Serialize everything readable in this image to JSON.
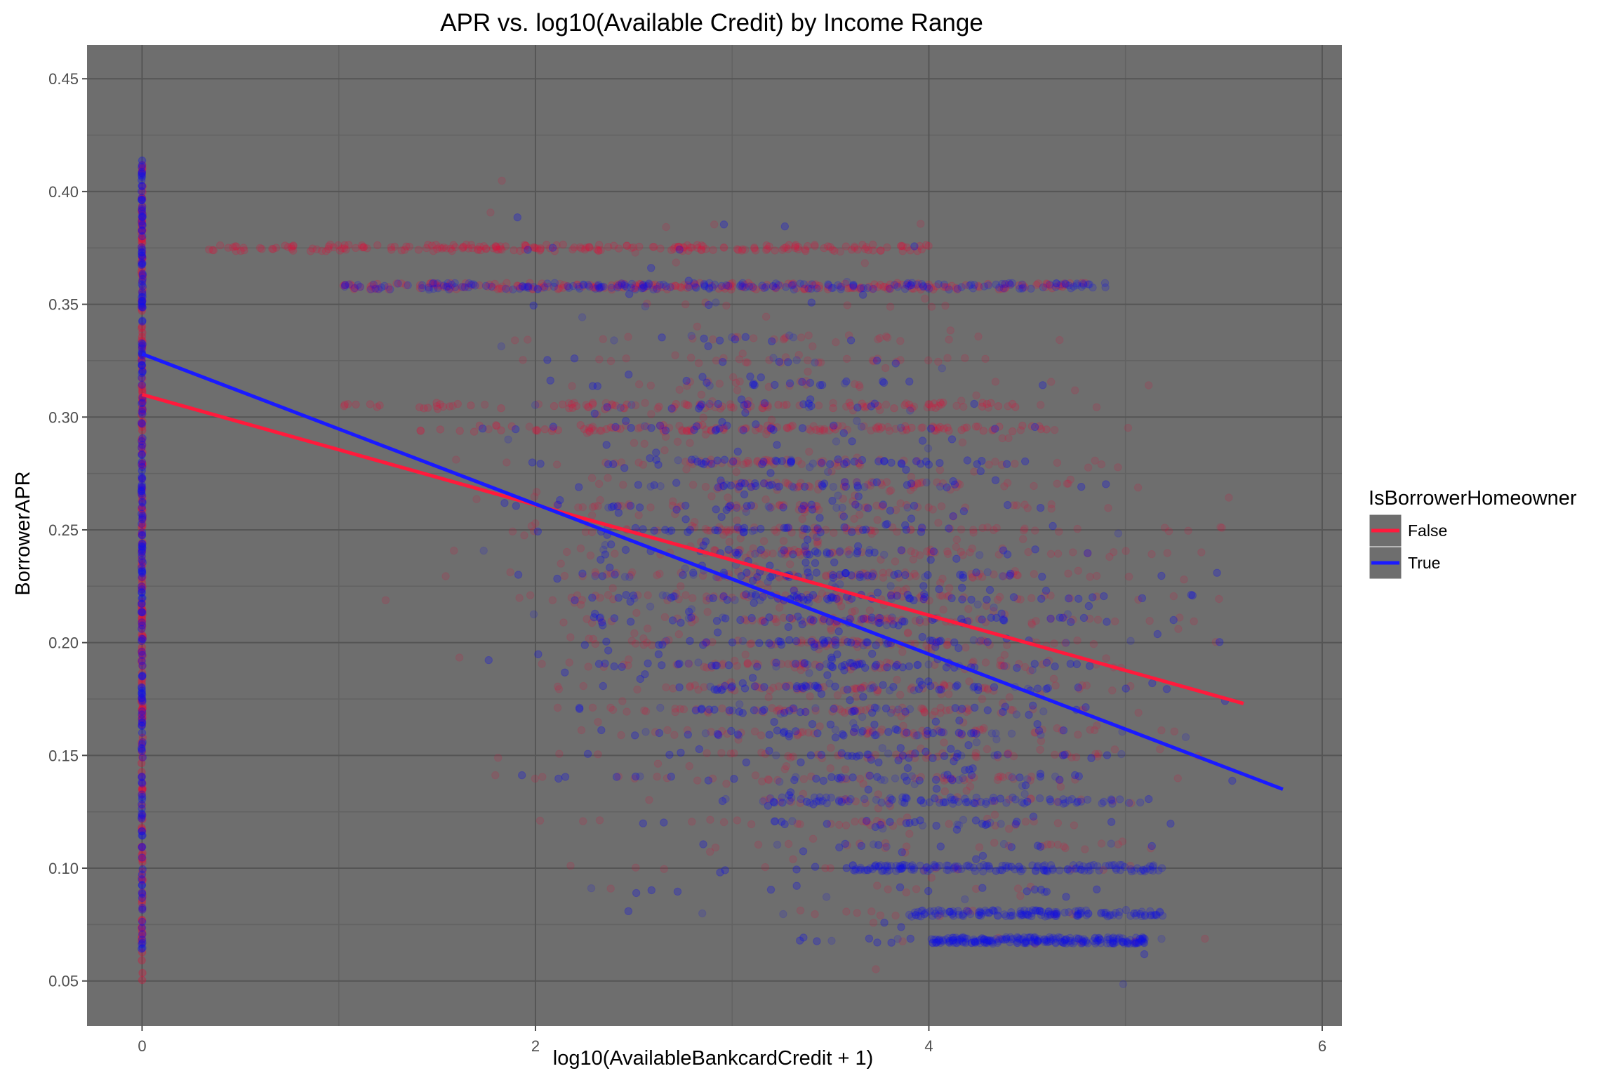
{
  "chart_data": {
    "type": "scatter",
    "title": "APR vs. log10(Available Credit) by Income Range",
    "xlabel": "log10(AvailableBankcardCredit + 1)",
    "ylabel": "BorrowerAPR",
    "xlim": [
      -0.28,
      6.1
    ],
    "ylim": [
      0.03,
      0.465
    ],
    "x_ticks": [
      0,
      2,
      4,
      6
    ],
    "x_tick_labels": [
      "0",
      "2",
      "4",
      "6"
    ],
    "y_ticks": [
      0.05,
      0.1,
      0.15,
      0.2,
      0.25,
      0.3,
      0.35,
      0.4,
      0.45
    ],
    "y_tick_labels": [
      "0.05",
      "0.10",
      "0.15",
      "0.20",
      "0.25",
      "0.30",
      "0.35",
      "0.40",
      "0.45"
    ],
    "grid": true,
    "panel_background": "#6e6e6e",
    "legend": {
      "title": "IsBorrowerHomeowner",
      "placement": "right",
      "entries": [
        "False",
        "True"
      ]
    },
    "series": [
      {
        "name": "False",
        "color": "#ff1a3c",
        "point_color": "#e0103a",
        "trend_line": {
          "x": [
            0.0,
            5.6
          ],
          "y": [
            0.31,
            0.173
          ]
        },
        "density_rows": [
          {
            "y": 0.375,
            "x_range": [
              0.3,
              4.0
            ],
            "weight": 3
          },
          {
            "y": 0.358,
            "x_range": [
              1.0,
              4.8
            ],
            "weight": 3
          },
          {
            "y": 0.305,
            "x_range": [
              1.0,
              4.5
            ],
            "weight": 1
          },
          {
            "y": 0.295,
            "x_range": [
              1.3,
              4.6
            ],
            "weight": 1
          }
        ]
      },
      {
        "name": "True",
        "color": "#1a1aff",
        "point_color": "#1010e8",
        "trend_line": {
          "x": [
            0.0,
            5.8
          ],
          "y": [
            0.328,
            0.135
          ]
        },
        "density_rows": [
          {
            "y": 0.358,
            "x_range": [
              1.0,
              4.9
            ],
            "weight": 3
          },
          {
            "y": 0.068,
            "x_range": [
              4.0,
              5.1
            ],
            "weight": 3
          },
          {
            "y": 0.08,
            "x_range": [
              3.9,
              5.2
            ],
            "weight": 2
          },
          {
            "y": 0.1,
            "x_range": [
              3.6,
              5.2
            ],
            "weight": 2
          },
          {
            "y": 0.13,
            "x_range": [
              3.2,
              5.1
            ],
            "weight": 1
          }
        ]
      }
    ],
    "vertical_strip_at_x": 0,
    "vertical_strip_y_range": [
      0.05,
      0.415
    ]
  }
}
